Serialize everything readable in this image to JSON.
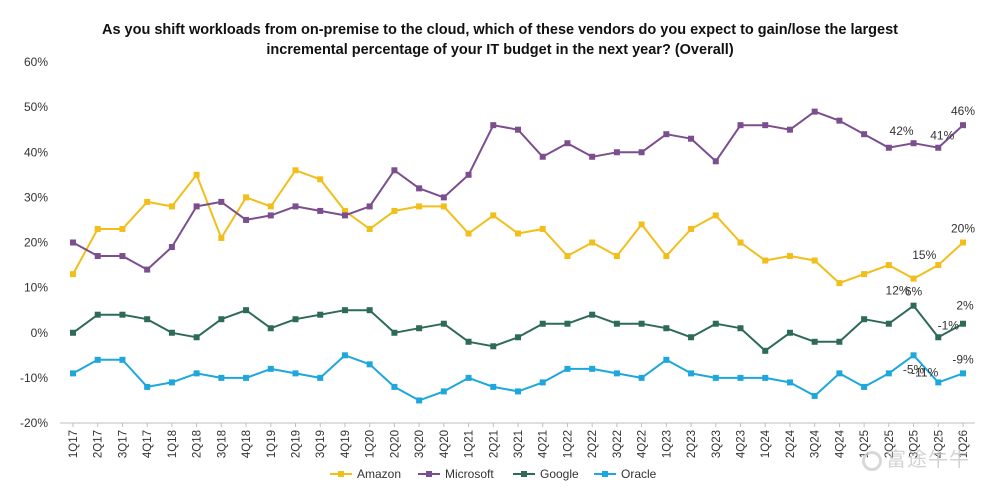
{
  "chart_data": {
    "type": "line",
    "title": "As you shift workloads from on-premise to the cloud, which of these vendors do you expect to gain/lose the largest incremental percentage of your IT budget in the next year? (Overall)",
    "ylim": [
      -20,
      60
    ],
    "yticks": [
      -20,
      -10,
      0,
      10,
      20,
      30,
      40,
      50,
      60
    ],
    "ytick_labels": [
      "-20%",
      "-10%",
      "0%",
      "10%",
      "20%",
      "30%",
      "40%",
      "50%",
      "60%"
    ],
    "grid": false,
    "legend_position": "bottom",
    "categories": [
      "1Q17",
      "2Q17",
      "3Q17",
      "4Q17",
      "1Q18",
      "2Q18",
      "3Q18",
      "4Q18",
      "1Q19",
      "2Q19",
      "3Q19",
      "4Q19",
      "1Q20",
      "2Q20",
      "3Q20",
      "4Q20",
      "1Q21",
      "2Q21",
      "3Q21",
      "4Q21",
      "1Q22",
      "2Q22",
      "3Q22",
      "4Q22",
      "1Q23",
      "2Q23",
      "3Q23",
      "4Q23",
      "1Q24",
      "2Q24",
      "3Q24",
      "4Q24",
      "1Q25",
      "2Q25",
      "3Q25",
      "4Q25",
      "1Q26"
    ],
    "series": [
      {
        "name": "Amazon",
        "color": "#F2BE1A",
        "marker": "square",
        "values": [
          13,
          23,
          23,
          29,
          28,
          35,
          21,
          30,
          28,
          36,
          34,
          27,
          23,
          27,
          28,
          28,
          22,
          26,
          22,
          23,
          17,
          20,
          17,
          24,
          17,
          23,
          26,
          20,
          16,
          17,
          16,
          11,
          13,
          15,
          12,
          15,
          20
        ],
        "point_labels": {
          "34": "12%",
          "35": "15%",
          "36": "20%"
        }
      },
      {
        "name": "Microsoft",
        "color": "#7B4E8E",
        "marker": "square",
        "values": [
          20,
          17,
          17,
          14,
          19,
          28,
          29,
          25,
          26,
          28,
          27,
          26,
          28,
          36,
          32,
          30,
          35,
          46,
          45,
          39,
          42,
          39,
          40,
          40,
          44,
          43,
          38,
          46,
          46,
          45,
          49,
          47,
          44,
          41,
          42,
          41,
          46
        ],
        "point_labels": {
          "34": "42%",
          "35": "41%",
          "36": "46%"
        }
      },
      {
        "name": "Google",
        "color": "#2E6B55",
        "marker": "square",
        "values": [
          0,
          4,
          4,
          3,
          0,
          -1,
          3,
          5,
          1,
          3,
          4,
          5,
          5,
          0,
          1,
          2,
          -2,
          -3,
          -1,
          2,
          2,
          4,
          2,
          2,
          1,
          -1,
          2,
          1,
          -4,
          0,
          -2,
          -2,
          3,
          2,
          6,
          -1,
          2
        ],
        "point_labels": {
          "34": "6%",
          "35": "-1%",
          "36": "2%"
        }
      },
      {
        "name": "Oracle",
        "color": "#1EA7DC",
        "marker": "square",
        "values": [
          -9,
          -6,
          -6,
          -12,
          -11,
          -9,
          -10,
          -10,
          -8,
          -9,
          -10,
          -5,
          -7,
          -12,
          -15,
          -13,
          -10,
          -12,
          -13,
          -11,
          -8,
          -8,
          -9,
          -10,
          -6,
          -9,
          -10,
          -10,
          -10,
          -11,
          -14,
          -9,
          -12,
          -9,
          -5,
          -11,
          -9
        ],
        "point_labels": {
          "34": "-5%",
          "35": "-11%",
          "36": "-9%"
        }
      }
    ]
  },
  "watermark_text": "富途牛牛"
}
